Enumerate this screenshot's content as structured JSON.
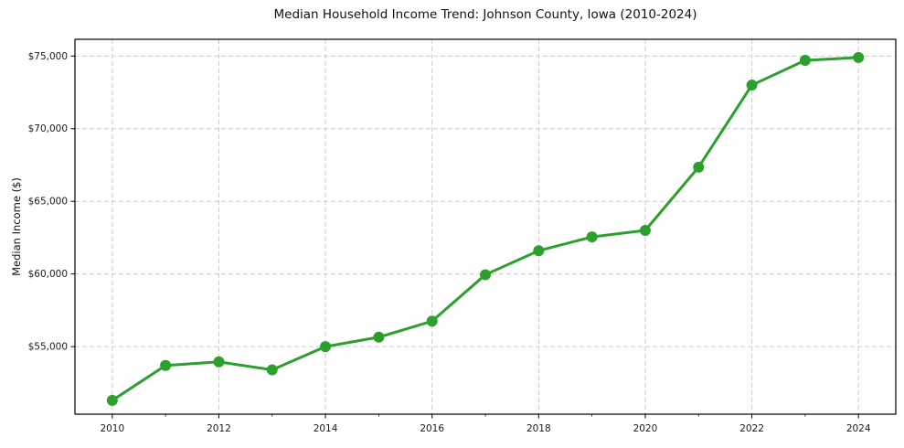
{
  "chart": {
    "title": "Median Household Income Trend: Johnson County, Iowa (2010-2024)",
    "y_axis_label": "Median Income ($)"
  },
  "chart_data": {
    "type": "line",
    "title": "Median Household Income Trend: Johnson County, Iowa (2010-2024)",
    "xlabel": "",
    "ylabel": "Median Income ($)",
    "series": [
      {
        "name": "Median Household Income",
        "x": [
          2010,
          2011,
          2012,
          2013,
          2014,
          2015,
          2016,
          2017,
          2018,
          2019,
          2020,
          2021,
          2022,
          2023,
          2024
        ],
        "y": [
          51300,
          53700,
          53950,
          53400,
          55000,
          55650,
          56750,
          59950,
          61600,
          62550,
          63000,
          67350,
          73000,
          74700,
          74900
        ],
        "color": "#2ca02c",
        "marker": "circle",
        "line_width": 3,
        "marker_radius": 6
      }
    ],
    "xlim": [
      2009.3,
      2024.7
    ],
    "ylim": [
      50350,
      76150
    ],
    "x_ticks": [
      2010,
      2012,
      2014,
      2016,
      2018,
      2020,
      2022,
      2024
    ],
    "x_minor_ticks": [
      2011,
      2013,
      2015,
      2017,
      2019,
      2021,
      2023
    ],
    "y_ticks": [
      55000,
      60000,
      65000,
      70000,
      75000
    ],
    "y_tick_prefix": "$",
    "grid": {
      "show": true,
      "style": "dashed",
      "color": "#cccccc"
    },
    "legend": {
      "show": false
    },
    "axis_color": "#000000",
    "tick_label_color": "#1a1a1a",
    "plot_background": "#ffffff"
  }
}
